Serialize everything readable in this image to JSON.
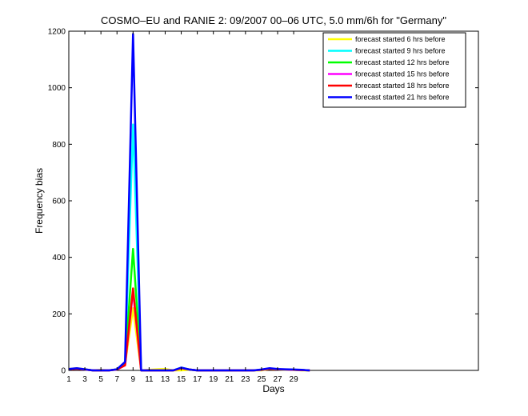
{
  "chart_data": {
    "type": "line",
    "title": "COSMO–EU and RANIE 2: 09/2007 00–06 UTC, 5.0 mm/6h for \"Germany\"",
    "xlabel": "Days",
    "ylabel": "Frequency bias",
    "xlim": [
      1,
      52
    ],
    "ylim": [
      0,
      1200
    ],
    "xticks": [
      1,
      3,
      5,
      7,
      9,
      11,
      13,
      15,
      17,
      19,
      21,
      23,
      25,
      27,
      29
    ],
    "yticks": [
      0,
      200,
      400,
      600,
      800,
      1000,
      1200
    ],
    "legend_position": "top-right",
    "grid": false,
    "series": [
      {
        "name": "forecast started 6 hrs before",
        "color": "#ffff00",
        "points": [
          [
            1,
            5
          ],
          [
            2,
            8
          ],
          [
            3,
            4
          ],
          [
            4,
            0
          ],
          [
            5,
            2
          ],
          [
            6,
            0
          ],
          [
            7,
            3
          ],
          [
            8,
            20
          ],
          [
            9,
            220
          ],
          [
            10,
            0
          ],
          [
            11,
            2
          ],
          [
            12,
            4
          ],
          [
            13,
            5
          ],
          [
            14,
            0
          ],
          [
            15,
            0
          ],
          [
            16,
            2
          ],
          [
            17,
            0
          ],
          [
            18,
            0
          ],
          [
            19,
            0
          ],
          [
            20,
            0
          ],
          [
            21,
            0
          ],
          [
            22,
            0
          ],
          [
            23,
            0
          ],
          [
            24,
            0
          ],
          [
            25,
            0
          ],
          [
            26,
            5
          ],
          [
            27,
            3
          ],
          [
            28,
            2
          ],
          [
            29,
            2
          ],
          [
            30,
            0
          ],
          [
            31,
            0
          ]
        ]
      },
      {
        "name": "forecast started 9 hrs before",
        "color": "#00ffff",
        "points": [
          [
            1,
            4
          ],
          [
            2,
            7
          ],
          [
            3,
            3
          ],
          [
            4,
            0
          ],
          [
            5,
            0
          ],
          [
            6,
            0
          ],
          [
            7,
            4
          ],
          [
            8,
            25
          ],
          [
            9,
            870
          ],
          [
            10,
            0
          ],
          [
            11,
            0
          ],
          [
            12,
            0
          ],
          [
            13,
            0
          ],
          [
            14,
            0
          ],
          [
            15,
            10
          ],
          [
            16,
            3
          ],
          [
            17,
            0
          ],
          [
            18,
            0
          ],
          [
            19,
            0
          ],
          [
            20,
            0
          ],
          [
            21,
            0
          ],
          [
            22,
            0
          ],
          [
            23,
            0
          ],
          [
            24,
            0
          ],
          [
            25,
            2
          ],
          [
            26,
            7
          ],
          [
            27,
            4
          ],
          [
            28,
            3
          ],
          [
            29,
            2
          ],
          [
            30,
            1
          ],
          [
            31,
            0
          ]
        ]
      },
      {
        "name": "forecast started 12 hrs before",
        "color": "#00ff00",
        "points": [
          [
            1,
            4
          ],
          [
            2,
            6
          ],
          [
            3,
            3
          ],
          [
            4,
            0
          ],
          [
            5,
            0
          ],
          [
            6,
            0
          ],
          [
            7,
            3
          ],
          [
            8,
            22
          ],
          [
            9,
            430
          ],
          [
            10,
            0
          ],
          [
            11,
            0
          ],
          [
            12,
            0
          ],
          [
            13,
            0
          ],
          [
            14,
            0
          ],
          [
            15,
            8
          ],
          [
            16,
            3
          ],
          [
            17,
            0
          ],
          [
            18,
            0
          ],
          [
            19,
            0
          ],
          [
            20,
            0
          ],
          [
            21,
            0
          ],
          [
            22,
            0
          ],
          [
            23,
            0
          ],
          [
            24,
            0
          ],
          [
            25,
            2
          ],
          [
            26,
            6
          ],
          [
            27,
            4
          ],
          [
            28,
            3
          ],
          [
            29,
            2
          ],
          [
            30,
            1
          ],
          [
            31,
            0
          ]
        ]
      },
      {
        "name": "forecast started 15 hrs before",
        "color": "#ff00ff",
        "points": [
          [
            1,
            4
          ],
          [
            2,
            6
          ],
          [
            3,
            3
          ],
          [
            4,
            0
          ],
          [
            5,
            0
          ],
          [
            6,
            0
          ],
          [
            7,
            3
          ],
          [
            8,
            18
          ],
          [
            9,
            280
          ],
          [
            10,
            0
          ],
          [
            11,
            0
          ],
          [
            12,
            0
          ],
          [
            13,
            0
          ],
          [
            14,
            0
          ],
          [
            15,
            8
          ],
          [
            16,
            3
          ],
          [
            17,
            0
          ],
          [
            18,
            0
          ],
          [
            19,
            0
          ],
          [
            20,
            0
          ],
          [
            21,
            0
          ],
          [
            22,
            0
          ],
          [
            23,
            0
          ],
          [
            24,
            0
          ],
          [
            25,
            2
          ],
          [
            26,
            6
          ],
          [
            27,
            4
          ],
          [
            28,
            3
          ],
          [
            29,
            2
          ],
          [
            30,
            1
          ],
          [
            31,
            0
          ]
        ]
      },
      {
        "name": "forecast started 18 hrs before",
        "color": "#ff0000",
        "points": [
          [
            1,
            4
          ],
          [
            2,
            6
          ],
          [
            3,
            3
          ],
          [
            4,
            0
          ],
          [
            5,
            0
          ],
          [
            6,
            0
          ],
          [
            7,
            3
          ],
          [
            8,
            18
          ],
          [
            9,
            290
          ],
          [
            10,
            0
          ],
          [
            11,
            0
          ],
          [
            12,
            0
          ],
          [
            13,
            0
          ],
          [
            14,
            0
          ],
          [
            15,
            8
          ],
          [
            16,
            3
          ],
          [
            17,
            0
          ],
          [
            18,
            0
          ],
          [
            19,
            0
          ],
          [
            20,
            0
          ],
          [
            21,
            0
          ],
          [
            22,
            0
          ],
          [
            23,
            0
          ],
          [
            24,
            0
          ],
          [
            25,
            2
          ],
          [
            26,
            6
          ],
          [
            27,
            4
          ],
          [
            28,
            3
          ],
          [
            29,
            2
          ],
          [
            30,
            1
          ],
          [
            31,
            0
          ]
        ]
      },
      {
        "name": "forecast started 21 hrs before",
        "color": "#0000ff",
        "points": [
          [
            1,
            5
          ],
          [
            2,
            8
          ],
          [
            3,
            4
          ],
          [
            4,
            0
          ],
          [
            5,
            0
          ],
          [
            6,
            0
          ],
          [
            7,
            4
          ],
          [
            8,
            30
          ],
          [
            9,
            1190
          ],
          [
            10,
            0
          ],
          [
            11,
            0
          ],
          [
            12,
            0
          ],
          [
            13,
            0
          ],
          [
            14,
            0
          ],
          [
            15,
            10
          ],
          [
            16,
            3
          ],
          [
            17,
            0
          ],
          [
            18,
            0
          ],
          [
            19,
            0
          ],
          [
            20,
            0
          ],
          [
            21,
            0
          ],
          [
            22,
            0
          ],
          [
            23,
            0
          ],
          [
            24,
            0
          ],
          [
            25,
            3
          ],
          [
            26,
            8
          ],
          [
            27,
            5
          ],
          [
            28,
            4
          ],
          [
            29,
            3
          ],
          [
            30,
            2
          ],
          [
            31,
            0
          ]
        ]
      }
    ]
  }
}
